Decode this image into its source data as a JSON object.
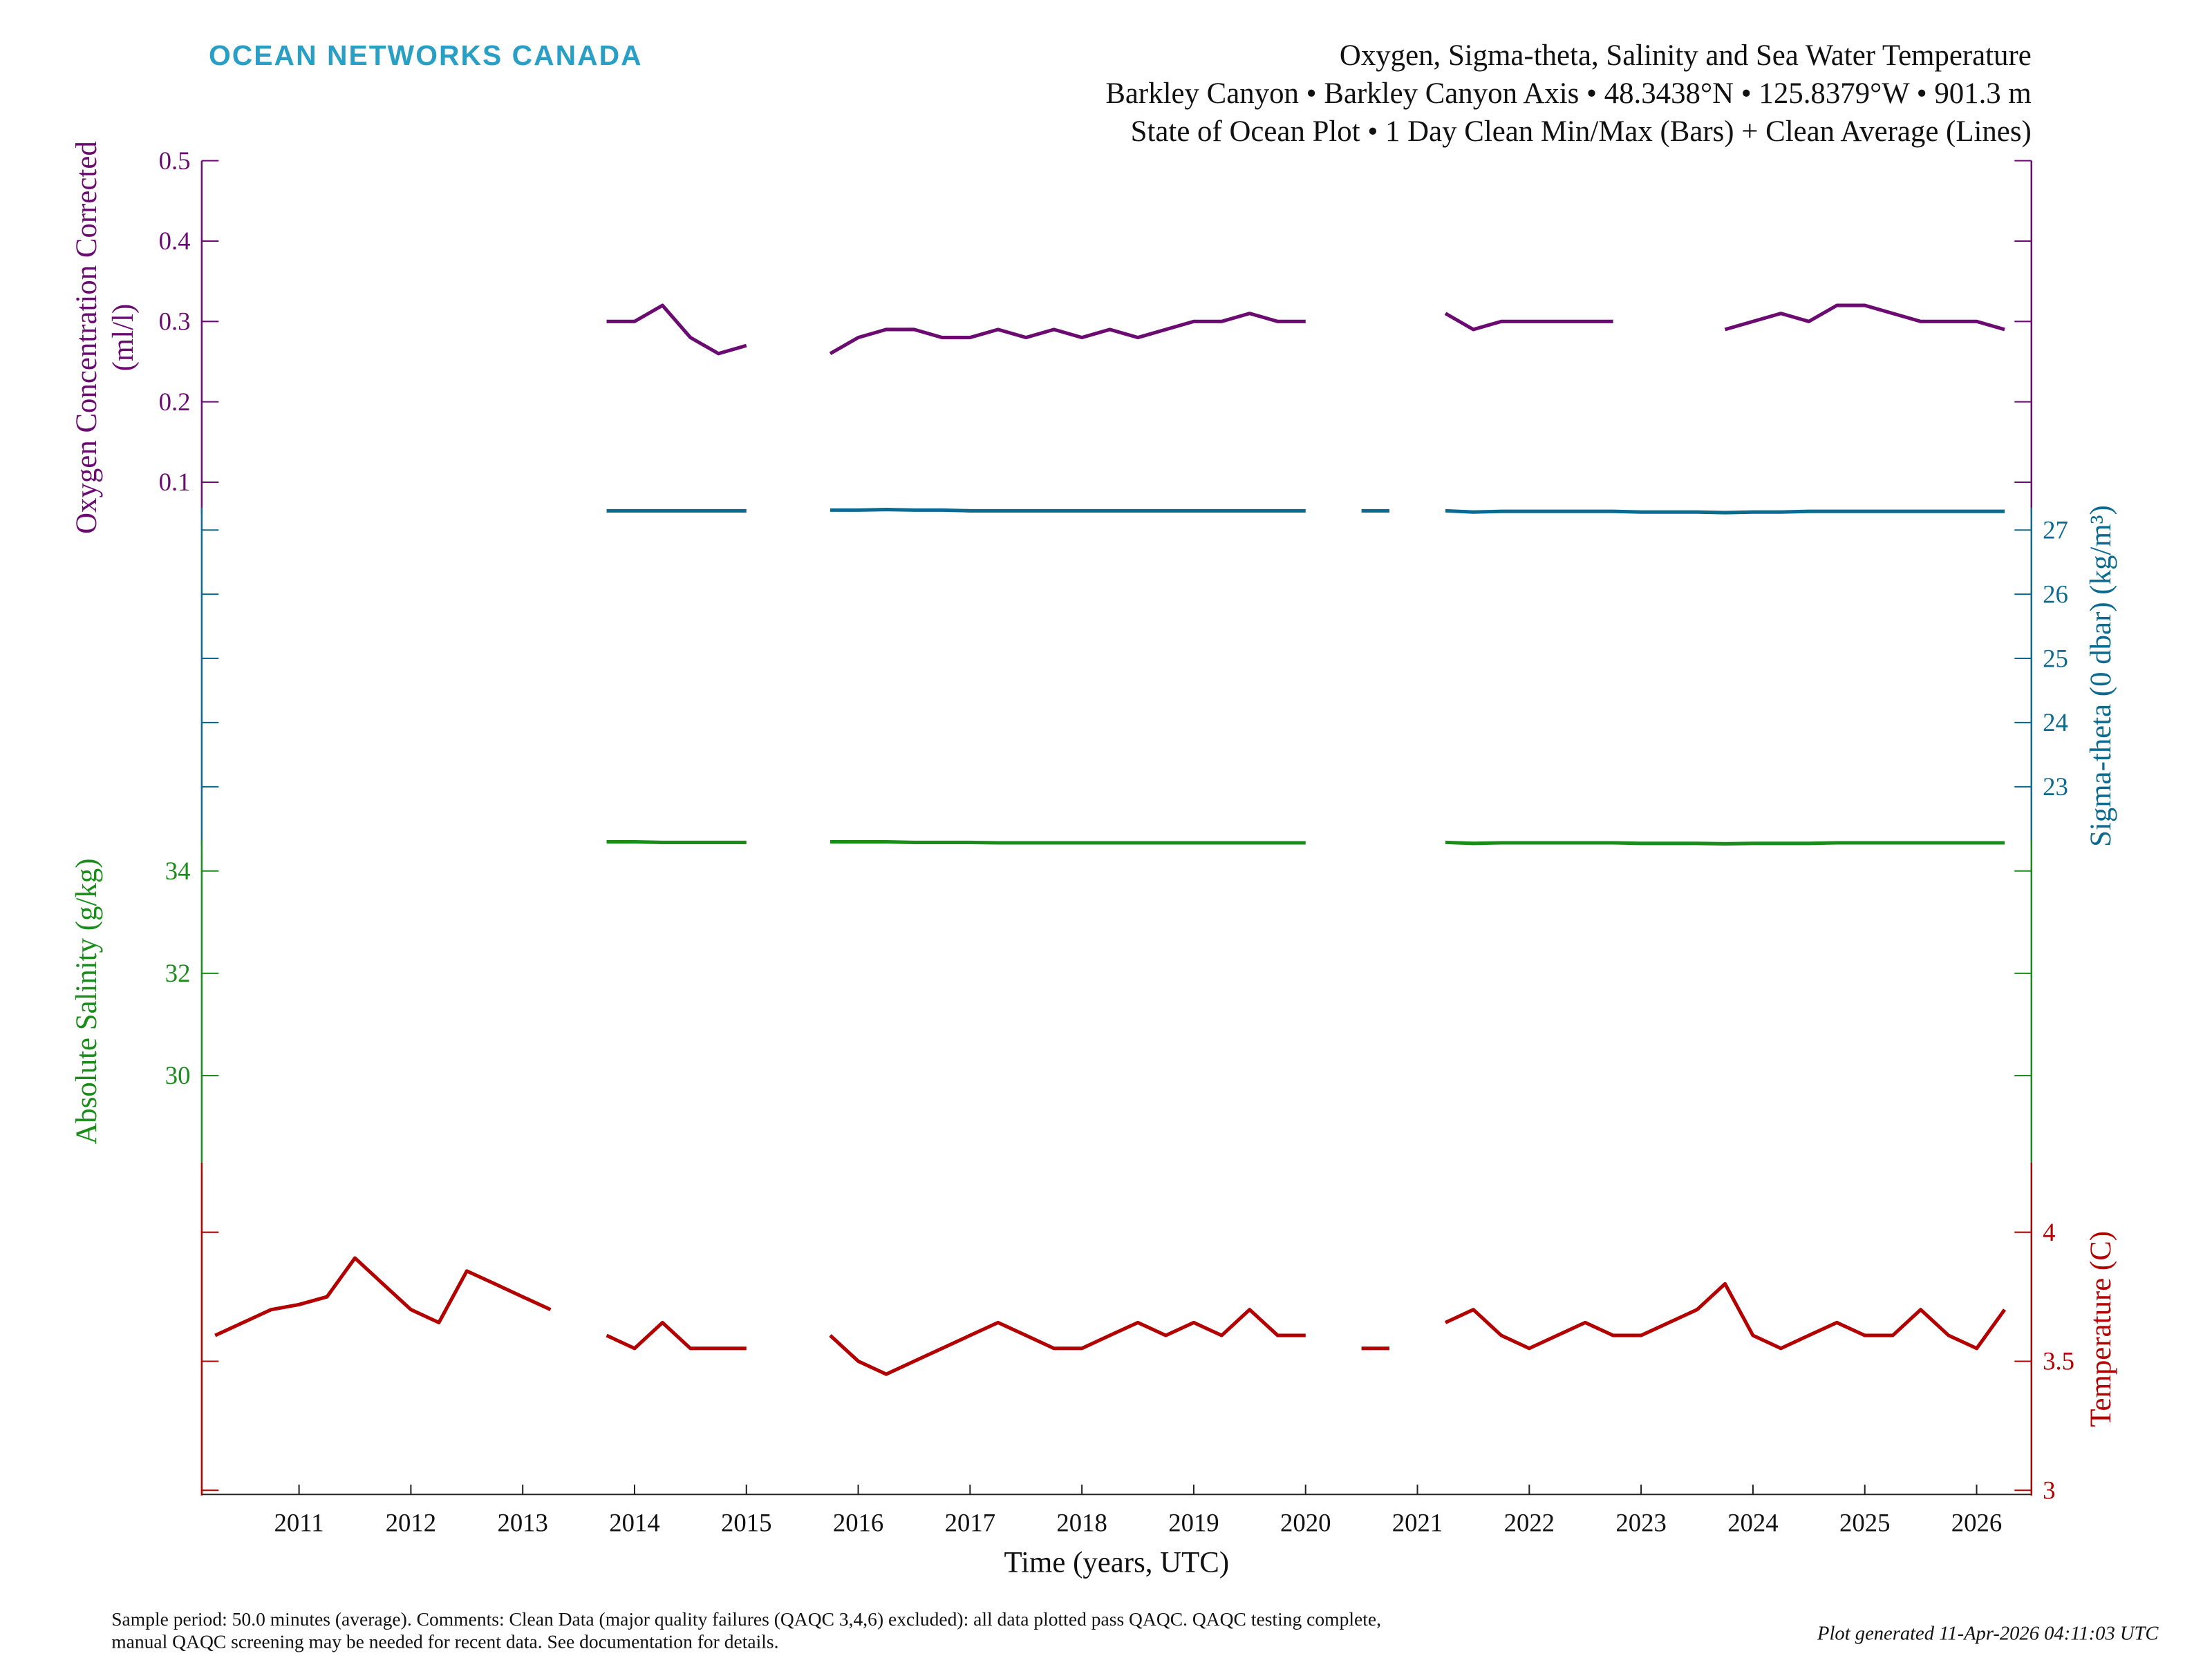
{
  "header": {
    "logo": "OCEAN NETWORKS CANADA"
  },
  "chart_data": {
    "type": "line",
    "title": [
      "Oxygen, Sigma-theta, Salinity and Sea Water Temperature",
      "Barkley Canyon • Barkley Canyon Axis • 48.3438°N • 125.8379°W • 901.3 m",
      "State of Ocean Plot • 1 Day Clean Min/Max (Bars) + Clean Average (Lines)"
    ],
    "xlabel": "Time (years, UTC)",
    "xlim": [
      2010.13,
      2026.49
    ],
    "xticks": [
      2011,
      2012,
      2013,
      2014,
      2015,
      2016,
      2017,
      2018,
      2019,
      2020,
      2021,
      2022,
      2023,
      2024,
      2025,
      2026
    ],
    "x": [
      2010.25,
      2010.5,
      2010.75,
      2011,
      2011.25,
      2011.5,
      2011.75,
      2012,
      2012.25,
      2012.5,
      2012.75,
      2013,
      2013.25,
      2013.5,
      2013.75,
      2014,
      2014.25,
      2014.5,
      2014.75,
      2015,
      2015.25,
      2015.5,
      2015.75,
      2016,
      2016.25,
      2016.5,
      2016.75,
      2017,
      2017.25,
      2017.5,
      2017.75,
      2018,
      2018.25,
      2018.5,
      2018.75,
      2019,
      2019.25,
      2019.5,
      2019.75,
      2020,
      2020.25,
      2020.5,
      2020.75,
      2021,
      2021.25,
      2021.5,
      2021.75,
      2022,
      2022.25,
      2022.5,
      2022.75,
      2023,
      2023.25,
      2023.5,
      2023.75,
      2024,
      2024.25,
      2024.5,
      2024.75,
      2025,
      2025.25,
      2025.5,
      2025.75,
      2026,
      2026.25
    ],
    "panels": [
      {
        "ylabel": [
          "Oxygen Concentration Corrected",
          "(ml/l)"
        ],
        "label_side": "left",
        "color": "#6b0b72",
        "ylim": [
          0.06,
          0.5
        ],
        "yticks": [
          0.1,
          0.2,
          0.3,
          0.4,
          0.5
        ],
        "values": [
          null,
          null,
          null,
          null,
          null,
          null,
          null,
          null,
          null,
          null,
          null,
          null,
          null,
          null,
          0.3,
          0.3,
          0.32,
          0.28,
          0.26,
          0.27,
          null,
          null,
          0.26,
          0.28,
          0.29,
          0.29,
          0.28,
          0.28,
          0.29,
          0.28,
          0.29,
          0.28,
          0.29,
          0.28,
          0.29,
          0.3,
          0.3,
          0.31,
          0.3,
          0.3,
          null,
          null,
          null,
          null,
          0.31,
          0.29,
          0.3,
          0.3,
          0.3,
          0.3,
          0.3,
          null,
          null,
          null,
          0.29,
          0.3,
          0.31,
          0.3,
          0.32,
          0.32,
          0.31,
          0.3,
          0.3,
          0.3,
          0.29
        ]
      },
      {
        "ylabel": [
          "Sigma-theta (0 dbar) (kg/m³)"
        ],
        "label_side": "right",
        "color": "#0c6a90",
        "ylim": [
          22.1,
          27.35
        ],
        "yticks": [
          23,
          24,
          25,
          26,
          27
        ],
        "values": [
          null,
          null,
          null,
          null,
          null,
          null,
          null,
          null,
          null,
          null,
          null,
          null,
          null,
          null,
          27.3,
          27.3,
          27.3,
          27.3,
          27.3,
          27.3,
          null,
          null,
          27.31,
          27.31,
          27.32,
          27.31,
          27.31,
          27.3,
          27.3,
          27.3,
          27.3,
          27.3,
          27.3,
          27.3,
          27.3,
          27.3,
          27.3,
          27.3,
          27.3,
          27.3,
          null,
          27.3,
          27.3,
          null,
          27.3,
          27.28,
          27.29,
          27.29,
          27.29,
          27.29,
          27.29,
          27.28,
          27.28,
          27.28,
          27.27,
          27.28,
          27.28,
          27.29,
          27.29,
          27.29,
          27.29,
          27.29,
          27.29,
          27.29,
          27.29
        ]
      },
      {
        "ylabel": [
          "Absolute Salinity (g/kg)"
        ],
        "label_side": "left",
        "color": "#1a8c1a",
        "ylim": [
          28.3,
          34.6
        ],
        "yticks": [
          30,
          32,
          34
        ],
        "values": [
          null,
          null,
          null,
          null,
          null,
          null,
          null,
          null,
          null,
          null,
          null,
          null,
          null,
          null,
          34.57,
          34.57,
          34.56,
          34.56,
          34.56,
          34.56,
          null,
          null,
          34.57,
          34.57,
          34.57,
          34.56,
          34.56,
          34.56,
          34.55,
          34.55,
          34.55,
          34.55,
          34.55,
          34.55,
          34.55,
          34.55,
          34.55,
          34.55,
          34.55,
          34.55,
          null,
          null,
          null,
          null,
          34.56,
          34.54,
          34.55,
          34.55,
          34.55,
          34.55,
          34.55,
          34.54,
          34.54,
          34.54,
          34.53,
          34.54,
          34.54,
          34.54,
          34.55,
          34.55,
          34.55,
          34.55,
          34.55,
          34.55,
          34.55
        ]
      },
      {
        "ylabel": [
          "Temperature (C)"
        ],
        "label_side": "right",
        "color": "#b30000",
        "ylim": [
          2.98,
          4.27
        ],
        "yticks": [
          3,
          3.5,
          4
        ],
        "values": [
          3.6,
          3.65,
          3.7,
          3.72,
          3.75,
          3.9,
          3.8,
          3.7,
          3.65,
          3.85,
          3.8,
          3.75,
          3.7,
          null,
          3.6,
          3.55,
          3.65,
          3.55,
          3.55,
          3.55,
          null,
          null,
          3.6,
          3.5,
          3.45,
          3.5,
          3.55,
          3.6,
          3.65,
          3.6,
          3.55,
          3.55,
          3.6,
          3.65,
          3.6,
          3.65,
          3.6,
          3.7,
          3.6,
          3.6,
          null,
          3.55,
          3.55,
          null,
          3.65,
          3.7,
          3.6,
          3.55,
          3.6,
          3.65,
          3.6,
          3.6,
          3.65,
          3.7,
          3.8,
          3.6,
          3.55,
          3.6,
          3.65,
          3.6,
          3.6,
          3.7,
          3.6,
          3.55,
          3.7
        ]
      }
    ]
  },
  "footer": {
    "notes": [
      "Sample period: 50.0 minutes (average). Comments: Clean Data (major quality failures (QAQC 3,4,6) excluded): all data plotted pass QAQC. QAQC testing complete,",
      "manual QAQC screening may be needed for recent data. See documentation for details."
    ],
    "generated": "Plot generated 11-Apr-2026 04:11:03 UTC"
  }
}
